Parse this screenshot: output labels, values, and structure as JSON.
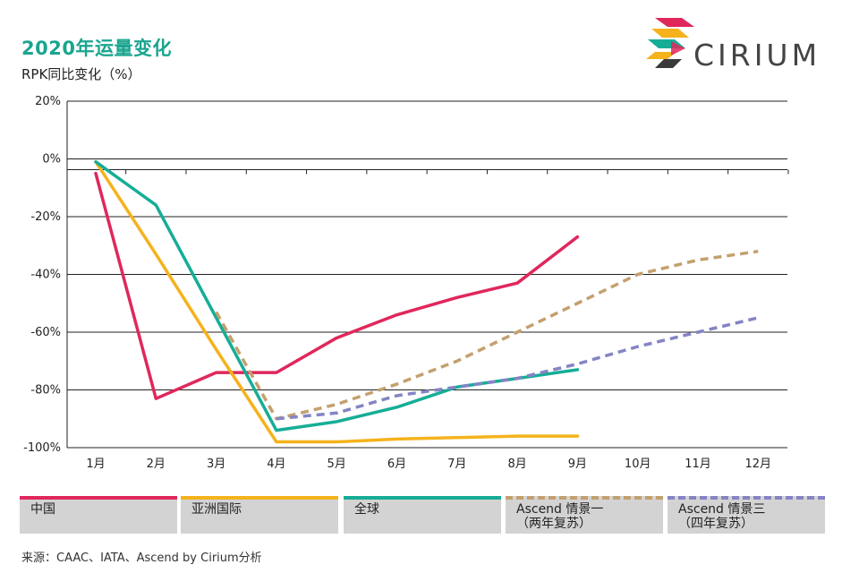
{
  "header": {
    "title": "2020年运量变化",
    "subtitle": "RPK同比变化（%）",
    "logo_text": "CIRIUM"
  },
  "chart_data": {
    "type": "line",
    "categories": [
      "1月",
      "2月",
      "3月",
      "4月",
      "5月",
      "6月",
      "7月",
      "8月",
      "9月",
      "10月",
      "11月",
      "12月"
    ],
    "yticks": [
      "20%",
      "0%",
      "-20%",
      "-40%",
      "-60%",
      "-80%",
      "-100%"
    ],
    "ylim": [
      -100,
      20
    ],
    "grid": true,
    "legend_position": "bottom",
    "series": [
      {
        "name": "中国",
        "color": "#e0275c",
        "dashed": false,
        "values": [
          -5,
          -83,
          -74,
          -74,
          -62,
          -54,
          -48,
          -43,
          -27,
          null,
          null,
          null
        ]
      },
      {
        "name": "亚洲国际",
        "color": "#f5b21c",
        "dashed": false,
        "values": [
          -1,
          -33,
          -66,
          -98,
          -98,
          -97,
          -96.5,
          -96,
          -96,
          null,
          null,
          null
        ]
      },
      {
        "name": "全球",
        "color": "#16ad96",
        "dashed": false,
        "values": [
          -1,
          -16,
          -55,
          -94,
          -91,
          -86,
          -79,
          -76,
          -73,
          null,
          null,
          null
        ]
      },
      {
        "name": "Ascend 情景一\n（两年复苏）",
        "color": "#c4a06e",
        "dashed": true,
        "values": [
          null,
          null,
          -53,
          -90,
          -85,
          -78,
          -70,
          -60,
          -50,
          -40,
          -35,
          -32
        ]
      },
      {
        "name": "Ascend 情景三\n（四年复苏）",
        "color": "#8484c4",
        "dashed": true,
        "values": [
          null,
          null,
          null,
          -90,
          -88,
          -82,
          -79,
          -76,
          -71,
          -65,
          -60,
          -55
        ]
      }
    ]
  },
  "legend": [
    {
      "label": "中国",
      "color": "#e0275c",
      "dashed": false
    },
    {
      "label": "亚洲国际",
      "color": "#f5b21c",
      "dashed": false
    },
    {
      "label": "全球",
      "color": "#16ad96",
      "dashed": false
    },
    {
      "label": "Ascend 情景一\n（两年复苏）",
      "color": "#c4a06e",
      "dashed": true
    },
    {
      "label": "Ascend 情景三\n（四年复苏）",
      "color": "#8484c4",
      "dashed": true
    }
  ],
  "footer": {
    "source": "来源：CAAC、IATA、Ascend by Cirium分析"
  }
}
